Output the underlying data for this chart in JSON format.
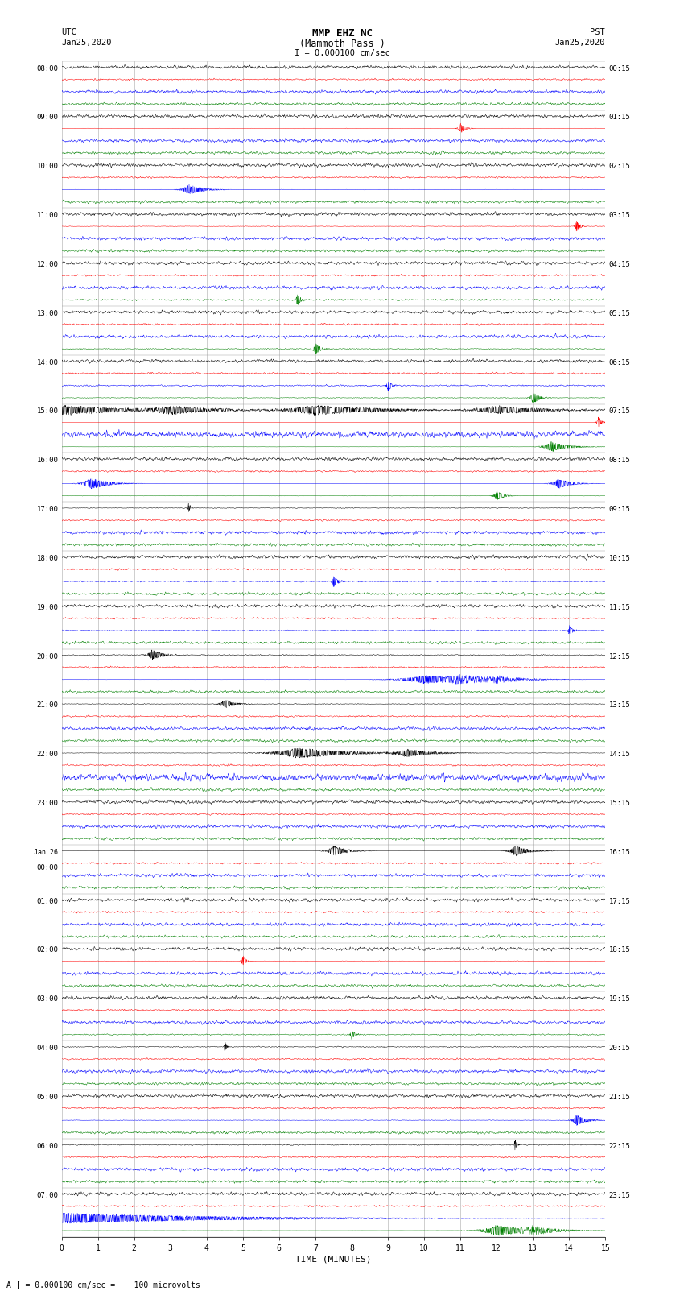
{
  "title_line1": "MMP EHZ NC",
  "title_line2": "(Mammoth Pass )",
  "scale_text": "I = 0.000100 cm/sec",
  "bottom_note": "A [ = 0.000100 cm/sec =    100 microvolts",
  "utc_label": "UTC",
  "utc_date": "Jan25,2020",
  "pst_label": "PST",
  "pst_date": "Jan25,2020",
  "xlabel": "TIME (MINUTES)",
  "left_times": [
    "08:00",
    "09:00",
    "10:00",
    "11:00",
    "12:00",
    "13:00",
    "14:00",
    "15:00",
    "16:00",
    "17:00",
    "18:00",
    "19:00",
    "20:00",
    "21:00",
    "22:00",
    "23:00",
    "Jan 26\n00:00",
    "01:00",
    "02:00",
    "03:00",
    "04:00",
    "05:00",
    "06:00",
    "07:00"
  ],
  "right_times": [
    "00:15",
    "01:15",
    "02:15",
    "03:15",
    "04:15",
    "05:15",
    "06:15",
    "07:15",
    "08:15",
    "09:15",
    "10:15",
    "11:15",
    "12:15",
    "13:15",
    "14:15",
    "15:15",
    "16:15",
    "17:15",
    "18:15",
    "19:15",
    "20:15",
    "21:15",
    "22:15",
    "23:15"
  ],
  "n_rows": 24,
  "n_lines_per_row": 4,
  "colors": [
    "black",
    "red",
    "blue",
    "green"
  ],
  "minutes": 15,
  "bg_color": "white",
  "seed": 42,
  "noise_base": 0.03,
  "n_points": 1800
}
